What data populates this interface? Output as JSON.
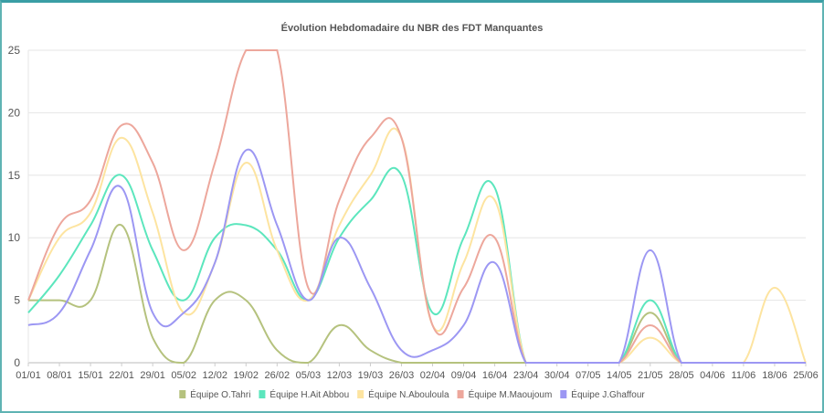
{
  "chart_data": {
    "type": "line",
    "title": "Évolution Hebdomadaire du NBR des FDT Manquantes",
    "xlabel": "",
    "ylabel": "",
    "ylim": [
      0,
      25
    ],
    "yticks": [
      0,
      5,
      10,
      15,
      20,
      25
    ],
    "grid": true,
    "legend_position": "bottom",
    "categories": [
      "01/01",
      "08/01",
      "15/01",
      "22/01",
      "29/01",
      "05/02",
      "12/02",
      "19/02",
      "26/02",
      "05/03",
      "12/03",
      "19/03",
      "26/03",
      "02/04",
      "09/04",
      "16/04",
      "23/04",
      "30/04",
      "07/05",
      "14/05",
      "21/05",
      "28/05",
      "04/06",
      "11/06",
      "18/06",
      "25/06"
    ],
    "series": [
      {
        "name": "Équipe O.Tahri",
        "color": "#b5c27e",
        "values": [
          5,
          5,
          5,
          11,
          2,
          0,
          5,
          5,
          1,
          0,
          3,
          1,
          0,
          0,
          0,
          0,
          0,
          0,
          0,
          0,
          4,
          0,
          0,
          0,
          0,
          0
        ]
      },
      {
        "name": "Équipe H.Ait Abbou",
        "color": "#5ce6bd",
        "values": [
          4,
          7,
          11,
          15,
          9,
          5,
          10,
          11,
          9,
          5,
          10,
          13,
          15,
          4,
          10,
          14,
          0,
          0,
          0,
          0,
          5,
          0,
          0,
          0,
          0,
          0
        ]
      },
      {
        "name": "Équipe N.Abouloula",
        "color": "#fde4a0",
        "values": [
          5,
          10,
          12,
          18,
          12,
          4,
          8,
          16,
          9,
          5,
          11,
          15,
          18,
          3,
          8,
          13,
          0,
          0,
          0,
          0,
          2,
          0,
          0,
          0,
          6,
          0
        ]
      },
      {
        "name": "Équipe M.Maoujoum",
        "color": "#eda79c",
        "values": [
          5,
          11,
          13,
          19,
          16,
          9,
          16,
          25,
          25,
          6,
          13,
          18,
          18,
          3,
          6,
          10,
          0,
          0,
          0,
          0,
          3,
          0,
          0,
          0,
          0,
          0
        ]
      },
      {
        "name": "Équipe J.Ghaffour",
        "color": "#9c97f3",
        "values": [
          3,
          4,
          9,
          14,
          4,
          4,
          8,
          17,
          11,
          5,
          10,
          6,
          1,
          1,
          3,
          8,
          0,
          0,
          0,
          0,
          9,
          0,
          0,
          0,
          0,
          0
        ]
      }
    ]
  }
}
